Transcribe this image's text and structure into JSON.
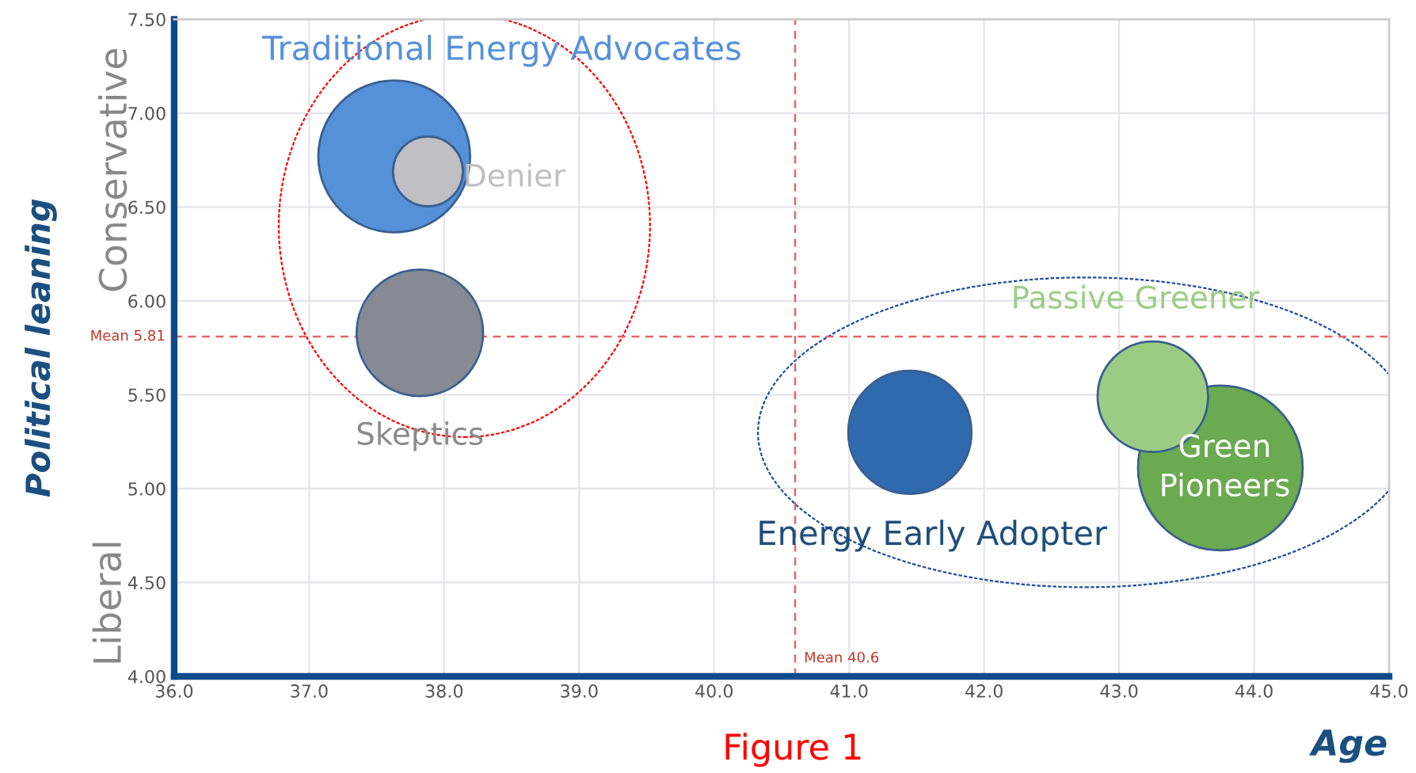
{
  "chart_data": {
    "type": "bubble",
    "xlabel": "Age",
    "ylabel": "Political leaning",
    "xlim": [
      36.0,
      45.0
    ],
    "xticks": [
      {
        "value": 36,
        "label": "36.0"
      },
      {
        "value": 37,
        "label": "37.0"
      },
      {
        "value": 38,
        "label": "38.0"
      },
      {
        "value": 39,
        "label": "39.0"
      },
      {
        "value": 40,
        "label": "40.0"
      },
      {
        "value": 41,
        "label": "41.0"
      },
      {
        "value": 42,
        "label": "42.0"
      },
      {
        "value": 43,
        "label": "43.0"
      },
      {
        "value": 44,
        "label": "44.0"
      },
      {
        "value": 45,
        "label": "45.0"
      }
    ],
    "ylim": [
      4.0,
      7.5
    ],
    "yticks": [
      {
        "value": 4,
        "label": "4.00"
      },
      {
        "value": 4.5,
        "label": "4.50"
      },
      {
        "value": 5,
        "label": "5.00"
      },
      {
        "value": 5.5,
        "label": "5.50"
      },
      {
        "value": 6,
        "label": "6.00"
      },
      {
        "value": 6.5,
        "label": "6.50"
      },
      {
        "value": 7,
        "label": "7.00"
      },
      {
        "value": 7.5,
        "label": "7.50"
      }
    ],
    "series": [
      {
        "name": "Traditional Energy Advocates",
        "color": "#5591d8",
        "x": [
          37.63
        ],
        "values": [
          6.77
        ],
        "sizes": [
          0.85
        ]
      },
      {
        "name": "Denier",
        "color": "#bfbfc4",
        "x": [
          37.88
        ],
        "values": [
          6.69
        ],
        "sizes": [
          0.18
        ]
      },
      {
        "name": "Skeptics",
        "color": "#868a94",
        "x": [
          37.82
        ],
        "values": [
          5.83
        ],
        "sizes": [
          0.59
        ]
      },
      {
        "name": "Energy Early Adopter",
        "color": "#2e6aad",
        "x": [
          41.45
        ],
        "values": [
          5.3
        ],
        "sizes": [
          0.56
        ]
      },
      {
        "name": "Green Pioneers",
        "color": "#6aaa50",
        "x": [
          43.75
        ],
        "values": [
          5.11
        ],
        "sizes": [
          1
        ]
      },
      {
        "name": "Passive Greener",
        "color": "#9ccc84",
        "x": [
          43.25
        ],
        "values": [
          5.49
        ],
        "sizes": [
          0.45
        ]
      }
    ],
    "ref_lines": [
      {
        "axis": "y",
        "value": 5.81,
        "label": "Mean 5.81",
        "color": "#e06666",
        "line_style": "dashed"
      },
      {
        "axis": "x",
        "value": 40.6,
        "label": "Mean 40.6",
        "color": "#e06666",
        "line_style": "dashed"
      }
    ],
    "annotations": [
      "Conservative",
      "Liberal",
      "Figure 1"
    ],
    "marker": "circle",
    "grid": true,
    "legend": false
  }
}
